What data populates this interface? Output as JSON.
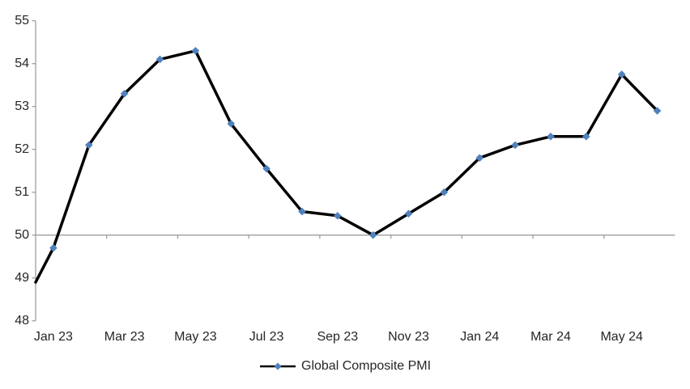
{
  "chart_data": {
    "type": "line",
    "title": "",
    "categories": [
      "Jan 23",
      "Feb 23",
      "Mar 23",
      "Apr 23",
      "May 23",
      "Jun 23",
      "Jul 23",
      "Aug 23",
      "Sep 23",
      "Oct 23",
      "Nov 23",
      "Dec 23",
      "Jan 24",
      "Feb 24",
      "Mar 24",
      "Apr 24",
      "May 24",
      "Jun 24"
    ],
    "series": [
      {
        "name": "Global Composite PMI",
        "values": [
          49.7,
          52.1,
          53.3,
          54.1,
          54.3,
          52.6,
          51.55,
          50.55,
          50.45,
          50.0,
          50.5,
          51.0,
          51.8,
          52.1,
          52.3,
          52.3,
          53.75,
          52.9
        ]
      }
    ],
    "line_enters_left_edge_at_value": 48.9,
    "visible_x_tick_labels": [
      "Jan 23",
      "Mar 23",
      "May 23",
      "Jul 23",
      "Sep 23",
      "Nov 23",
      "Jan 24",
      "Mar 24",
      "May 24"
    ],
    "x_label_every_n_categories": 2,
    "y_tick_labels": [
      55,
      54,
      53,
      52,
      51,
      50,
      49,
      48
    ],
    "ylim": [
      48,
      55
    ],
    "x_axis_crosses_at": 50,
    "grid": "off",
    "legend": {
      "position": "bottom",
      "label": "Global Composite PMI"
    },
    "colors": {
      "marker": "#4F81BD",
      "series_line": "#000000",
      "axis_line": "#9E9E9E",
      "text": "#262626",
      "background": "#FFFFFF"
    }
  }
}
